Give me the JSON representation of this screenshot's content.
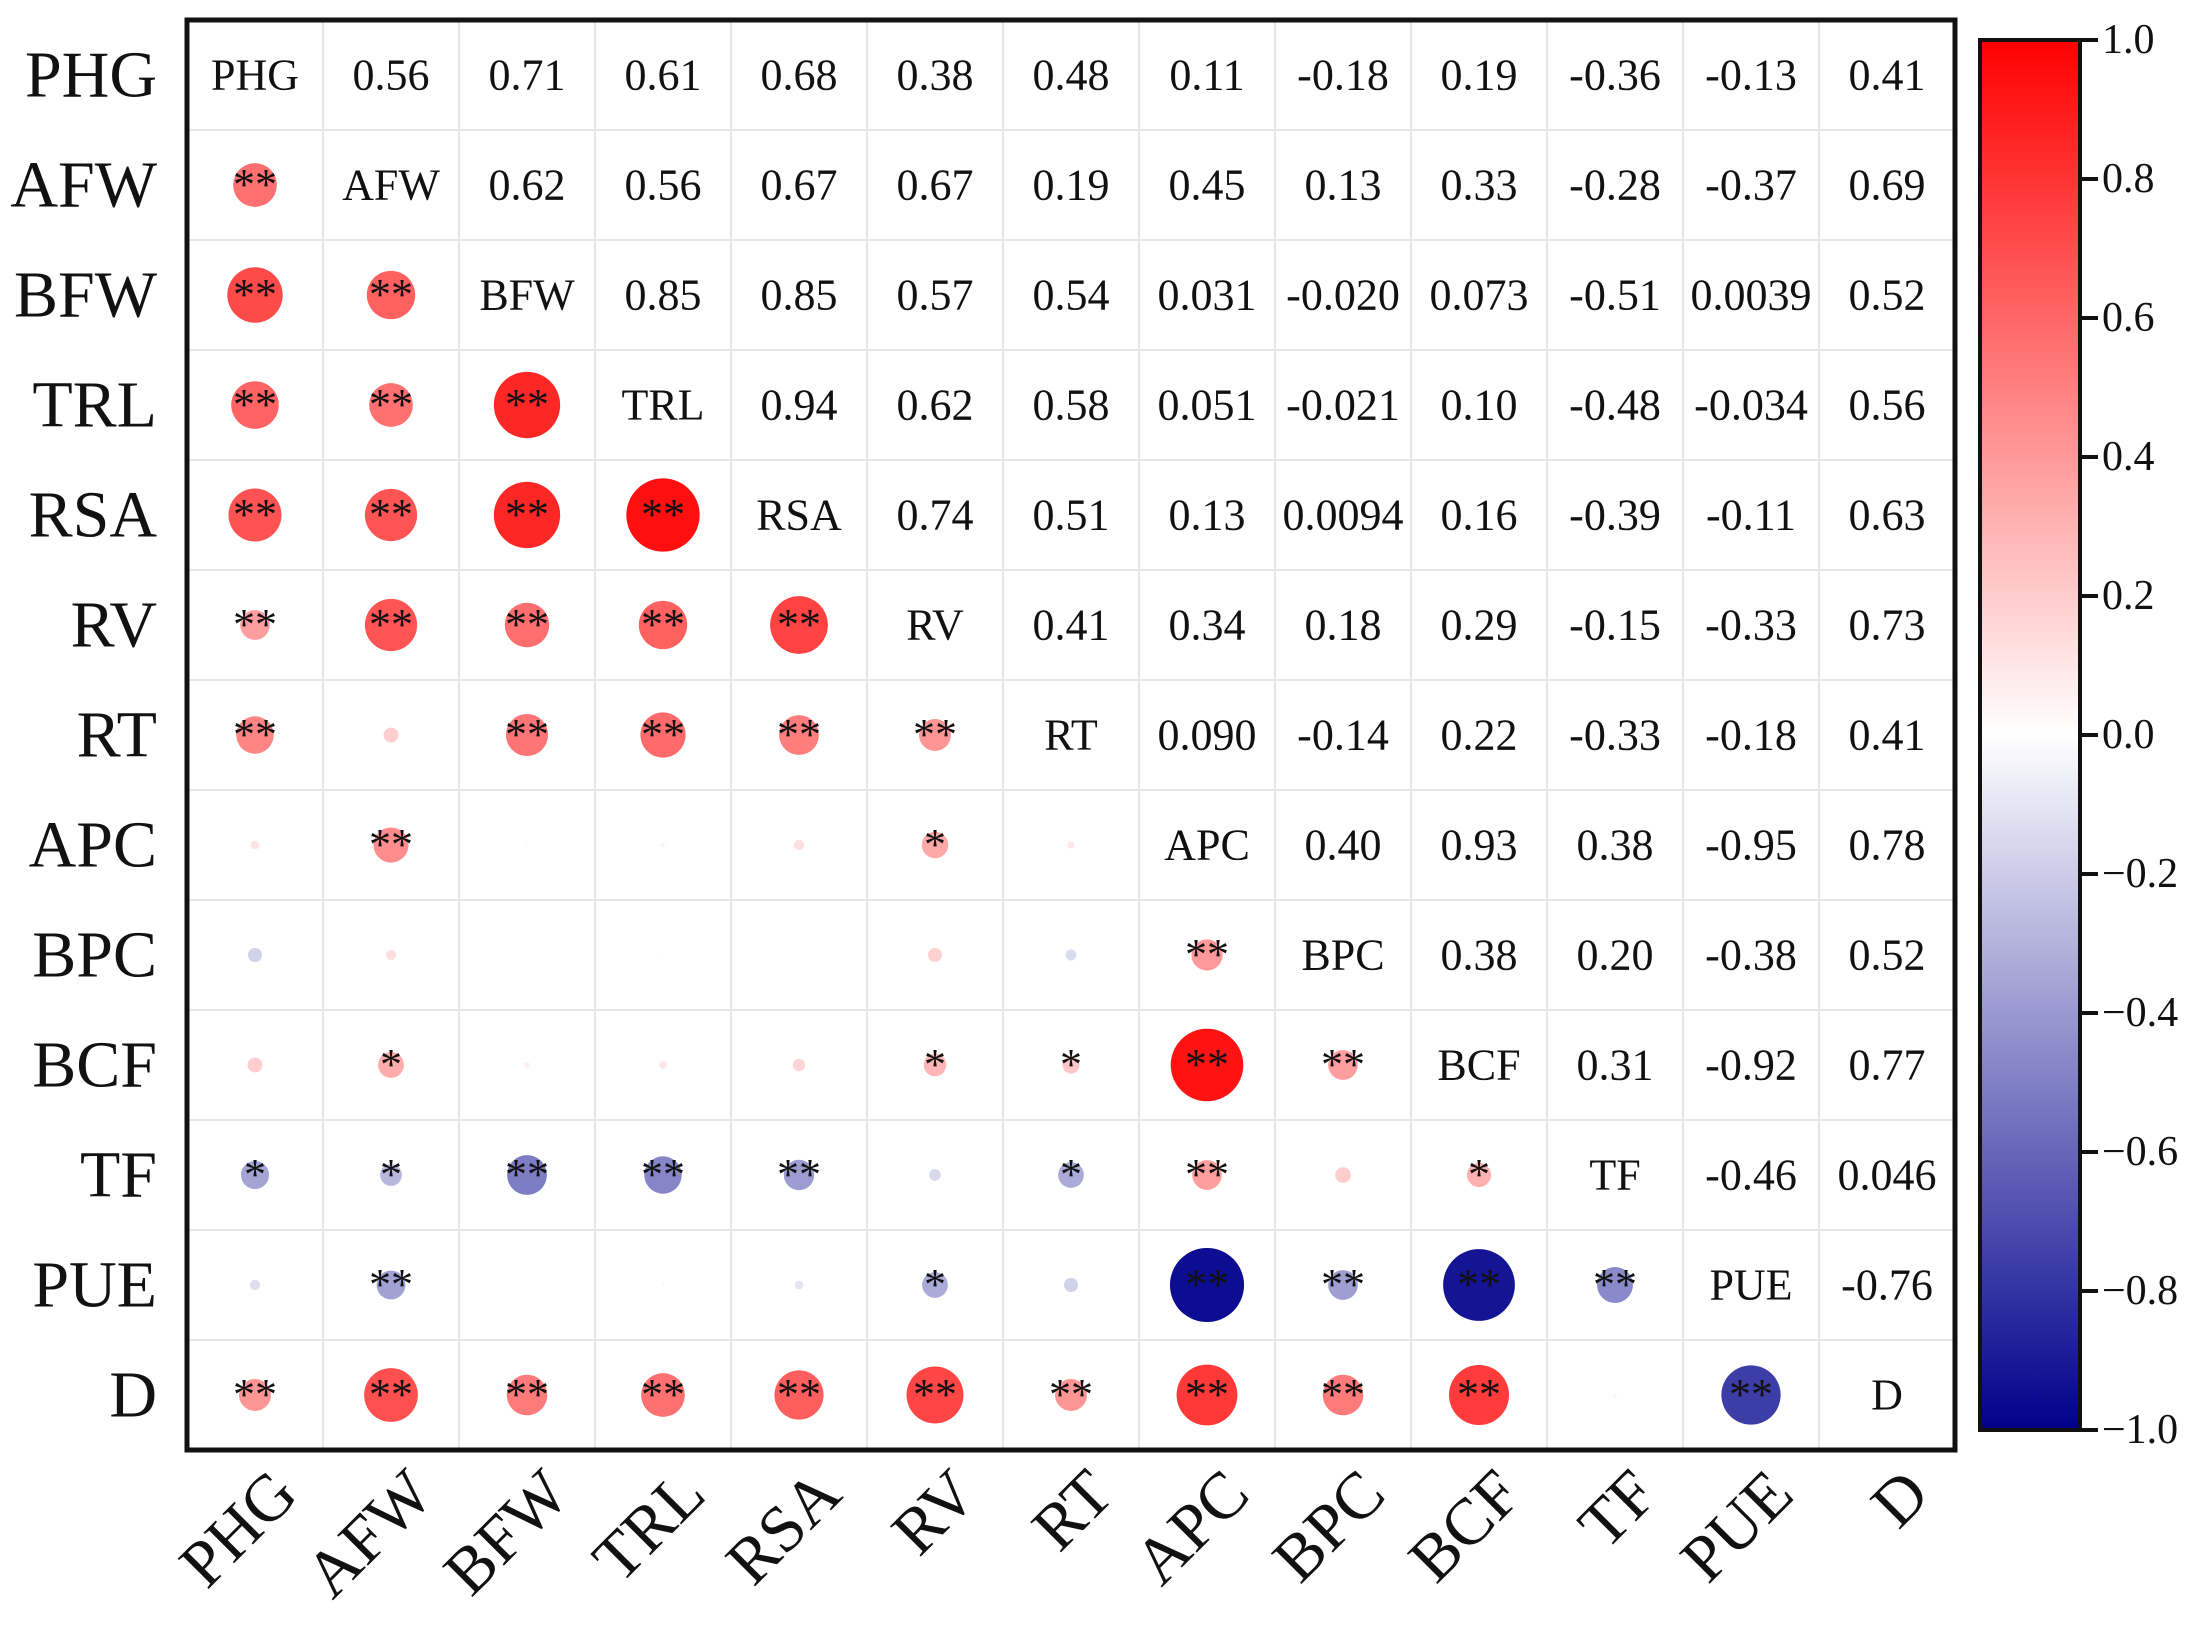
{
  "chart_data": {
    "type": "heatmap",
    "subtype": "correlation-matrix",
    "title": "",
    "variables": [
      "PHG",
      "AFW",
      "BFW",
      "TRL",
      "RSA",
      "RV",
      "RT",
      "APC",
      "BPC",
      "BCF",
      "TF",
      "PUE",
      "D"
    ],
    "upper_labels": [
      [
        null,
        "0.56",
        "0.71",
        "0.61",
        "0.68",
        "0.38",
        "0.48",
        "0.11",
        "-0.18",
        "0.19",
        "-0.36",
        "-0.13",
        "0.41"
      ],
      [
        null,
        null,
        "0.62",
        "0.56",
        "0.67",
        "0.67",
        "0.19",
        "0.45",
        "0.13",
        "0.33",
        "-0.28",
        "-0.37",
        "0.69"
      ],
      [
        null,
        null,
        null,
        "0.85",
        "0.85",
        "0.57",
        "0.54",
        "0.031",
        "-0.020",
        "0.073",
        "-0.51",
        "0.0039",
        "0.52"
      ],
      [
        null,
        null,
        null,
        null,
        "0.94",
        "0.62",
        "0.58",
        "0.051",
        "-0.021",
        "0.10",
        "-0.48",
        "-0.034",
        "0.56"
      ],
      [
        null,
        null,
        null,
        null,
        null,
        "0.74",
        "0.51",
        "0.13",
        "0.0094",
        "0.16",
        "-0.39",
        "-0.11",
        "0.63"
      ],
      [
        null,
        null,
        null,
        null,
        null,
        null,
        "0.41",
        "0.34",
        "0.18",
        "0.29",
        "-0.15",
        "-0.33",
        "0.73"
      ],
      [
        null,
        null,
        null,
        null,
        null,
        null,
        null,
        "0.090",
        "-0.14",
        "0.22",
        "-0.33",
        "-0.18",
        "0.41"
      ],
      [
        null,
        null,
        null,
        null,
        null,
        null,
        null,
        null,
        "0.40",
        "0.93",
        "0.38",
        "-0.95",
        "0.78"
      ],
      [
        null,
        null,
        null,
        null,
        null,
        null,
        null,
        null,
        null,
        "0.38",
        "0.20",
        "-0.38",
        "0.52"
      ],
      [
        null,
        null,
        null,
        null,
        null,
        null,
        null,
        null,
        null,
        null,
        "0.31",
        "-0.92",
        "0.77"
      ],
      [
        null,
        null,
        null,
        null,
        null,
        null,
        null,
        null,
        null,
        null,
        null,
        "-0.46",
        "0.046"
      ],
      [
        null,
        null,
        null,
        null,
        null,
        null,
        null,
        null,
        null,
        null,
        null,
        null,
        "-0.76"
      ],
      [
        null,
        null,
        null,
        null,
        null,
        null,
        null,
        null,
        null,
        null,
        null,
        null,
        null
      ]
    ],
    "significance": [
      [
        "",
        "",
        "",
        "",
        "",
        "",
        "",
        "",
        "",
        "",
        "",
        "",
        ""
      ],
      [
        "**",
        "",
        "",
        "",
        "",
        "",
        "",
        "",
        "",
        "",
        "",
        "",
        ""
      ],
      [
        "**",
        "**",
        "",
        "",
        "",
        "",
        "",
        "",
        "",
        "",
        "",
        "",
        ""
      ],
      [
        "**",
        "**",
        "**",
        "",
        "",
        "",
        "",
        "",
        "",
        "",
        "",
        "",
        ""
      ],
      [
        "**",
        "**",
        "**",
        "**",
        "",
        "",
        "",
        "",
        "",
        "",
        "",
        "",
        ""
      ],
      [
        "**",
        "**",
        "**",
        "**",
        "**",
        "",
        "",
        "",
        "",
        "",
        "",
        "",
        ""
      ],
      [
        "**",
        "",
        "**",
        "**",
        "**",
        "**",
        "",
        "",
        "",
        "",
        "",
        "",
        ""
      ],
      [
        "",
        "**",
        "",
        "",
        "",
        "*",
        "",
        "",
        "",
        "",
        "",
        "",
        ""
      ],
      [
        "",
        "",
        "",
        "",
        "",
        "",
        "",
        "**",
        "",
        "",
        "",
        "",
        ""
      ],
      [
        "",
        "*",
        "",
        "",
        "",
        "*",
        "*",
        "**",
        "**",
        "",
        "",
        "",
        ""
      ],
      [
        "*",
        "*",
        "**",
        "**",
        "**",
        "",
        "*",
        "**",
        "",
        "*",
        "",
        "",
        ""
      ],
      [
        "",
        "**",
        "",
        "",
        "",
        "*",
        "",
        "**",
        "**",
        "**",
        "**",
        "",
        ""
      ],
      [
        "**",
        "**",
        "**",
        "**",
        "**",
        "**",
        "**",
        "**",
        "**",
        "**",
        "",
        "**",
        ""
      ]
    ],
    "colorbar": {
      "min": -1.0,
      "max": 1.0,
      "tick_labels": [
        "1.0",
        "0.8",
        "0.6",
        "0.4",
        "0.2",
        "0.0",
        "−0.2",
        "−0.4",
        "−0.6",
        "−0.8",
        "−1.0"
      ],
      "tick_values": [
        1.0,
        0.8,
        0.6,
        0.4,
        0.2,
        0.0,
        -0.2,
        -0.4,
        -0.6,
        -0.8,
        -1.0
      ],
      "colors": {
        "negative": "#00008B",
        "zero": "#FFFFFF",
        "positive": "#FF0000"
      }
    },
    "encoding": "lower triangle: circle size and color = correlation value; upper triangle: correlation value as text; diagonal: variable name",
    "xlabel": "",
    "ylabel": ""
  }
}
